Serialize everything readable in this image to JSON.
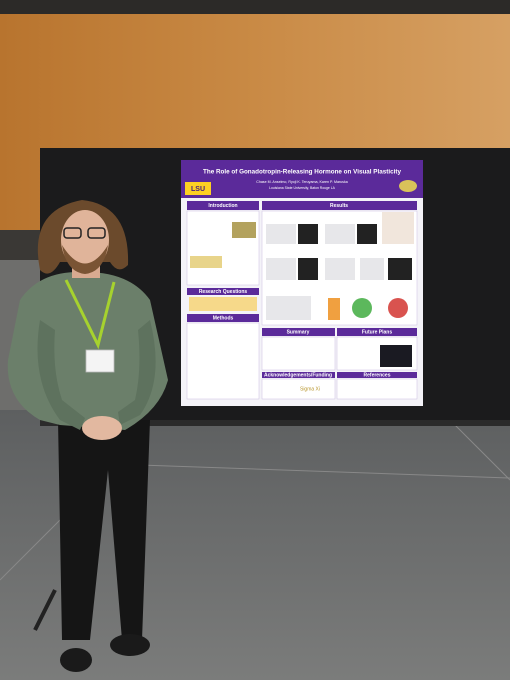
{
  "poster": {
    "title": "The Role of Gonadotropin-Releasing Hormone on Visual Plasticity",
    "authors": "Chase M. Anselmo, Ryoji K. Teruyama, Karen P. Maruska",
    "affiliation": "Louisiana State University, Baton Rouge LA",
    "logo": "LSU",
    "sections": {
      "introduction": "Introduction",
      "results": "Results",
      "research_questions": "Research Questions",
      "methods": "Methods",
      "summary": "Summary",
      "future_plans": "Future Plans",
      "acknowledgements": "Acknowledgements/Funding",
      "references": "References"
    },
    "sponsor": "Sigma Xi"
  }
}
